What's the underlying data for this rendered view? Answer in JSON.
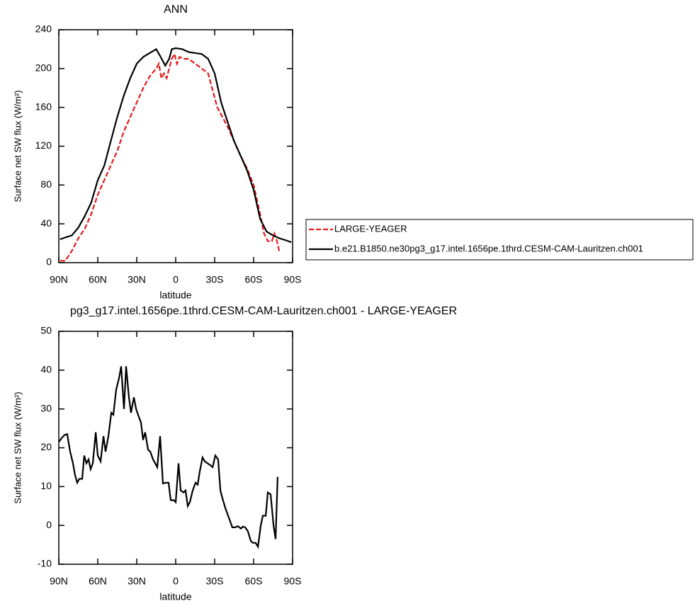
{
  "chart_data": [
    {
      "type": "line",
      "title": "ANN",
      "xlabel": "latitude",
      "ylabel": "Surface net SW flux (W/m²)",
      "xlim": [
        90,
        -90
      ],
      "xticks": [
        {
          "value": 90,
          "label": "90N"
        },
        {
          "value": 60,
          "label": "60N"
        },
        {
          "value": 30,
          "label": "30N"
        },
        0,
        {
          "value": -30,
          "label": "30S"
        },
        {
          "value": -60,
          "label": "60S"
        },
        {
          "value": -90,
          "label": "90S"
        }
      ],
      "ylim": [
        0,
        240
      ],
      "yticks": [
        0,
        40,
        80,
        120,
        160,
        200,
        240
      ],
      "legend": "right",
      "series": [
        {
          "name": "LARGE-YEAGER",
          "color": "#e41a1c",
          "dash": true,
          "x": [
            89,
            85,
            80,
            75,
            70,
            65,
            60,
            55,
            50,
            45,
            40,
            35,
            30,
            25,
            20,
            15,
            13,
            11,
            9,
            7,
            5,
            3,
            1,
            -1,
            -3,
            -6,
            -10,
            -15,
            -20,
            -25,
            -28,
            -32,
            -36,
            -40,
            -45,
            -50,
            -55,
            -60,
            -65,
            -68,
            -71,
            -74,
            -76,
            -78,
            -80
          ],
          "values": [
            2,
            2,
            12,
            25,
            35,
            50,
            70,
            85,
            100,
            115,
            135,
            150,
            165,
            180,
            192,
            200,
            205,
            190,
            195,
            190,
            200,
            210,
            215,
            205,
            212,
            210,
            210,
            205,
            200,
            195,
            180,
            160,
            150,
            140,
            125,
            110,
            97,
            80,
            50,
            30,
            22,
            22,
            30,
            22,
            10
          ]
        },
        {
          "name": "b.e21.B1850.ne30pg3_g17.intel.1656pe.1thrd.CESM-CAM-Lauritzen.ch001",
          "color": "#000000",
          "dash": false,
          "x": [
            89,
            85,
            80,
            75,
            70,
            65,
            60,
            55,
            50,
            45,
            40,
            35,
            30,
            25,
            20,
            15,
            12,
            8,
            5,
            3,
            0,
            -5,
            -10,
            -15,
            -20,
            -25,
            -30,
            -35,
            -40,
            -45,
            -50,
            -55,
            -60,
            -65,
            -70,
            -75,
            -80,
            -85,
            -89
          ],
          "values": [
            24,
            26,
            28,
            36,
            48,
            62,
            85,
            100,
            125,
            150,
            172,
            190,
            205,
            212,
            216,
            220,
            213,
            203,
            210,
            220,
            221,
            220,
            217,
            216,
            215,
            210,
            195,
            165,
            145,
            125,
            110,
            95,
            75,
            45,
            32,
            28,
            25,
            23,
            21
          ]
        }
      ]
    },
    {
      "type": "line",
      "title": "pg3_g17.intel.1656pe.1thrd.CESM-CAM-Lauritzen.ch001 - LARGE-YEAGER",
      "xlabel": "latitude",
      "ylabel": "Surface net SW flux (W/m²)",
      "xlim": [
        90,
        -90
      ],
      "xticks": [
        {
          "value": 90,
          "label": "90N"
        },
        {
          "value": 60,
          "label": "60N"
        },
        {
          "value": 30,
          "label": "30N"
        },
        0,
        {
          "value": -30,
          "label": "30S"
        },
        {
          "value": -60,
          "label": "60S"
        },
        {
          "value": -90,
          "label": "90S"
        }
      ],
      "ylim": [
        -10,
        50
      ],
      "yticks": [
        -10,
        0,
        10,
        20,
        30,
        40,
        50
      ],
      "series": [
        {
          "color": "#000000",
          "dash": false,
          "x": [
            90,
            87.8,
            85.6,
            83.5,
            81.3,
            79.1,
            77.5,
            75.8,
            74.2,
            72,
            70.4,
            68.7,
            67.1,
            65.5,
            63.8,
            61.6,
            60,
            57.8,
            55.6,
            54,
            51.8,
            49.6,
            48,
            45.8,
            43.6,
            42,
            39.8,
            38.2,
            36,
            34.4,
            32.2,
            30.5,
            28.4,
            26.7,
            25.1,
            23.5,
            21.3,
            19.6,
            17.4,
            15.8,
            14.2,
            12,
            9.8,
            7.6,
            5.5,
            3.8,
            1.6,
            0,
            -2.2,
            -3.8,
            -6,
            -7.6,
            -9.3,
            -10.9,
            -13.1,
            -15.3,
            -16.9,
            -18.6,
            -20.7,
            -22.4,
            -24.5,
            -26.7,
            -28.4,
            -30.5,
            -32.7,
            -34.4,
            -36,
            -38.2,
            -39.8,
            -42,
            -43.6,
            -45.8,
            -48,
            -50.2,
            -51.8,
            -53.5,
            -55.6,
            -57.8,
            -59.5,
            -61.6,
            -63.3,
            -65.5,
            -67.1,
            -69.3,
            -70.9,
            -73.1,
            -75.3,
            -76.9,
            -78.5
          ],
          "values": [
            21.5,
            22.5,
            23.3,
            23.5,
            19,
            16,
            13,
            11,
            12,
            12,
            18,
            16,
            17,
            14.5,
            16,
            24,
            18,
            16.5,
            23,
            19,
            23,
            29,
            28.5,
            35,
            38,
            41,
            30,
            41,
            33,
            29,
            33,
            30,
            28,
            26.5,
            22,
            24,
            19.5,
            19,
            17,
            16,
            15,
            23,
            10.8,
            11,
            11,
            6.5,
            6.5,
            6,
            16,
            9,
            8.5,
            9,
            5,
            6,
            9,
            11,
            10.5,
            14,
            17.5,
            16.5,
            16,
            15.5,
            15,
            18,
            17,
            9,
            7,
            4.5,
            3,
            1,
            -0.5,
            -0.5,
            -0.2,
            -0.8,
            -0.3,
            -0.5,
            -1.5,
            -4,
            -4.5,
            -4.5,
            -5.5,
            0,
            2.5,
            2.5,
            8.5,
            8,
            0,
            -3.5,
            12.5
          ]
        }
      ]
    }
  ]
}
